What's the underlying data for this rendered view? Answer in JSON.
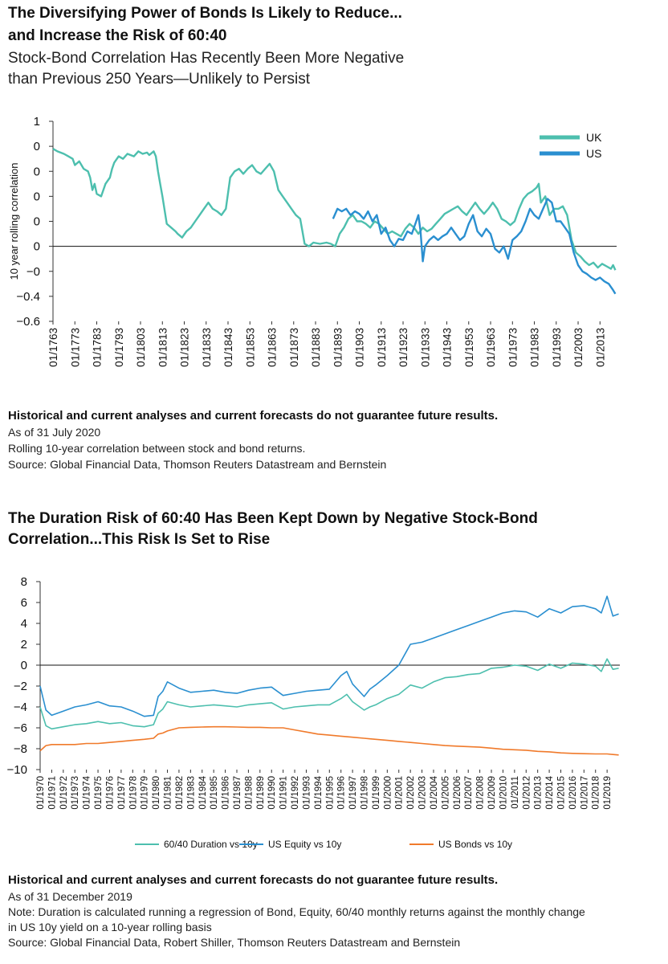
{
  "chart1": {
    "title_line1": "The Diversifying Power of Bonds Is Likely to Reduce...",
    "title_line2": "and Increase the Risk of 60:40",
    "subtitle_line1": "Stock-Bond Correlation Has Recently Been More Negative",
    "subtitle_line2": "than Previous 250 Years—Unlikely to Persist",
    "notes": {
      "disclaimer": "Historical and current analyses and current forecasts do not guarantee future results.",
      "as_of": "As of 31 July 2020",
      "description": "Rolling 10-year correlation between stock and bond returns.",
      "source": "Source: Global Financial Data, Thomson Reuters Datastream and Bernstein"
    }
  },
  "chart2": {
    "title_line1": "The Duration Risk of 60:40 Has Been Kept Down by Negative Stock-Bond",
    "title_line2": "Correlation...This Risk Is Set to Rise",
    "notes": {
      "disclaimer": "Historical and current analyses and current forecasts do not guarantee future results.",
      "as_of": "As of 31 December 2019",
      "note_line1": "Note: Duration is calculated running a regression of Bond, Equity, 60/40 monthly returns against the monthly change",
      "note_line2": "in US 10y yield on a 10-year rolling basis",
      "source": "Source: Global Financial Data, Robert Shiller, Thomson Reuters Datastream and Bernstein"
    }
  },
  "chart_data": [
    {
      "type": "line",
      "ylabel": "10 year rolling correlation",
      "xlabel": "",
      "ylim": [
        -0.6,
        1
      ],
      "xlim": [
        1763,
        2020.6
      ],
      "ytick_labels": [
        "1",
        "0",
        "0",
        "0",
        "0",
        "0",
        "−0",
        "−0.4",
        "−0.6"
      ],
      "ytick_values": [
        1,
        0.8,
        0.6,
        0.4,
        0.2,
        0,
        -0.2,
        -0.4,
        -0.6
      ],
      "xtick_labels": [
        "01/1763",
        "01/1773",
        "01/1783",
        "01/1793",
        "01/1803",
        "01/1813",
        "01/1823",
        "01/1833",
        "01/1843",
        "01/1853",
        "01/1863",
        "01/1873",
        "01/1883",
        "01/1893",
        "01/1903",
        "01/1913",
        "01/1923",
        "01/1933",
        "01/1943",
        "01/1953",
        "01/1963",
        "01/1973",
        "01/1983",
        "01/1993",
        "01/2003",
        "01/2013"
      ],
      "xtick_values": [
        1763,
        1773,
        1783,
        1793,
        1803,
        1813,
        1823,
        1833,
        1843,
        1853,
        1863,
        1873,
        1883,
        1893,
        1903,
        1913,
        1923,
        1933,
        1943,
        1953,
        1963,
        1973,
        1983,
        1993,
        2003,
        2013
      ],
      "legend_position": "top-right",
      "grid": false,
      "series": [
        {
          "name": "UK",
          "color": "#4dbfae",
          "x": [
            1763,
            1765,
            1768,
            1770,
            1772,
            1773,
            1775,
            1777,
            1779,
            1780,
            1781,
            1782,
            1783,
            1785,
            1787,
            1789,
            1790,
            1791,
            1793,
            1795,
            1797,
            1800,
            1802,
            1804,
            1806,
            1807,
            1809,
            1810,
            1811,
            1812,
            1813,
            1815,
            1817,
            1819,
            1820,
            1822,
            1824,
            1826,
            1828,
            1830,
            1832,
            1834,
            1836,
            1838,
            1840,
            1842,
            1844,
            1846,
            1848,
            1850,
            1852,
            1854,
            1856,
            1858,
            1860,
            1862,
            1864,
            1866,
            1868,
            1870,
            1872,
            1874,
            1876,
            1877,
            1878,
            1880,
            1882,
            1885,
            1888,
            1890,
            1892,
            1894,
            1896,
            1898,
            1900,
            1902,
            1904,
            1906,
            1908,
            1910,
            1912,
            1914,
            1916,
            1918,
            1920,
            1922,
            1924,
            1926,
            1928,
            1930,
            1932,
            1934,
            1936,
            1938,
            1940,
            1942,
            1944,
            1946,
            1948,
            1950,
            1952,
            1954,
            1956,
            1958,
            1960,
            1962,
            1964,
            1966,
            1968,
            1970,
            1972,
            1974,
            1976,
            1978,
            1980,
            1982,
            1984,
            1985,
            1986,
            1988,
            1990,
            1992,
            1994,
            1996,
            1998,
            2000,
            2002,
            2004,
            2006,
            2008,
            2010,
            2012,
            2014,
            2016,
            2018,
            2019,
            2020
          ],
          "values": [
            0.78,
            0.76,
            0.74,
            0.72,
            0.7,
            0.65,
            0.68,
            0.62,
            0.6,
            0.55,
            0.45,
            0.5,
            0.42,
            0.4,
            0.5,
            0.55,
            0.62,
            0.67,
            0.72,
            0.7,
            0.74,
            0.72,
            0.76,
            0.74,
            0.75,
            0.73,
            0.76,
            0.72,
            0.6,
            0.5,
            0.4,
            0.18,
            0.15,
            0.12,
            0.1,
            0.07,
            0.12,
            0.15,
            0.2,
            0.25,
            0.3,
            0.35,
            0.3,
            0.28,
            0.25,
            0.3,
            0.55,
            0.6,
            0.62,
            0.58,
            0.62,
            0.65,
            0.6,
            0.58,
            0.62,
            0.66,
            0.6,
            0.45,
            0.4,
            0.35,
            0.3,
            0.25,
            0.22,
            0.12,
            0.02,
            0.0,
            0.03,
            0.02,
            0.03,
            0.02,
            0.0,
            0.1,
            0.15,
            0.22,
            0.25,
            0.2,
            0.2,
            0.18,
            0.15,
            0.2,
            0.18,
            0.14,
            0.1,
            0.12,
            0.1,
            0.08,
            0.14,
            0.18,
            0.15,
            0.1,
            0.15,
            0.12,
            0.14,
            0.18,
            0.22,
            0.26,
            0.28,
            0.3,
            0.32,
            0.28,
            0.25,
            0.3,
            0.35,
            0.3,
            0.26,
            0.3,
            0.35,
            0.3,
            0.22,
            0.2,
            0.17,
            0.2,
            0.3,
            0.38,
            0.42,
            0.44,
            0.47,
            0.5,
            0.35,
            0.4,
            0.25,
            0.3,
            0.3,
            0.32,
            0.25,
            0.05,
            -0.05,
            -0.08,
            -0.12,
            -0.15,
            -0.13,
            -0.17,
            -0.14,
            -0.16,
            -0.18,
            -0.15,
            -0.19
          ]
        },
        {
          "name": "US",
          "color": "#2a8fd0",
          "x": [
            1891,
            1893,
            1895,
            1897,
            1899,
            1901,
            1903,
            1905,
            1907,
            1909,
            1911,
            1913,
            1915,
            1917,
            1919,
            1921,
            1923,
            1925,
            1927,
            1929,
            1930,
            1931,
            1932,
            1933,
            1935,
            1937,
            1939,
            1941,
            1943,
            1945,
            1947,
            1949,
            1951,
            1953,
            1955,
            1957,
            1959,
            1961,
            1963,
            1965,
            1967,
            1969,
            1971,
            1973,
            1975,
            1977,
            1979,
            1981,
            1983,
            1985,
            1987,
            1989,
            1991,
            1993,
            1995,
            1997,
            1999,
            2001,
            2003,
            2005,
            2007,
            2009,
            2011,
            2013,
            2015,
            2017,
            2019,
            2020
          ],
          "values": [
            0.22,
            0.3,
            0.28,
            0.3,
            0.25,
            0.28,
            0.26,
            0.22,
            0.28,
            0.2,
            0.25,
            0.1,
            0.15,
            0.05,
            0.0,
            0.06,
            0.05,
            0.12,
            0.1,
            0.2,
            0.25,
            0.12,
            -0.12,
            0.0,
            0.05,
            0.08,
            0.05,
            0.08,
            0.1,
            0.15,
            0.1,
            0.05,
            0.08,
            0.18,
            0.25,
            0.12,
            0.08,
            0.14,
            0.1,
            -0.02,
            -0.05,
            0.0,
            -0.1,
            0.05,
            0.08,
            0.12,
            0.2,
            0.3,
            0.25,
            0.22,
            0.3,
            0.38,
            0.35,
            0.2,
            0.2,
            0.15,
            0.1,
            -0.05,
            -0.15,
            -0.2,
            -0.22,
            -0.25,
            -0.27,
            -0.25,
            -0.28,
            -0.3,
            -0.35,
            -0.38
          ]
        }
      ]
    },
    {
      "type": "line",
      "ylabel": "",
      "xlabel": "",
      "ylim": [
        -10,
        8
      ],
      "xlim": [
        1970,
        2020.1
      ],
      "ytick_labels": [
        "8",
        "6",
        "4",
        "2",
        "0",
        "−2",
        "−4",
        "−6",
        "−8",
        "−10"
      ],
      "ytick_values": [
        8,
        6,
        4,
        2,
        0,
        -2,
        -4,
        -6,
        -8,
        -10
      ],
      "xtick_labels": [
        "01/1970",
        "01/1971",
        "01/1972",
        "01/1973",
        "01/1974",
        "01/1975",
        "01/1976",
        "01/1977",
        "01/1978",
        "01/1979",
        "01/1980",
        "01/1981",
        "01/1982",
        "01/1983",
        "01/1984",
        "01/1985",
        "01/1986",
        "01/1987",
        "01/1988",
        "01/1989",
        "01/1990",
        "01/1991",
        "01/1992",
        "01/1993",
        "01/1994",
        "01/1995",
        "01/1996",
        "01/1997",
        "01/1998",
        "01/1999",
        "01/2000",
        "01/2001",
        "01/2002",
        "01/2003",
        "01/2004",
        "01/2005",
        "01/2006",
        "01/2007",
        "01/2008",
        "01/2009",
        "01/2010",
        "01/2011",
        "01/2012",
        "01/2013",
        "01/2014",
        "01/2015",
        "01/2016",
        "01/2017",
        "01/2018",
        "01/2019"
      ],
      "xtick_values": [
        1970,
        1971,
        1972,
        1973,
        1974,
        1975,
        1976,
        1977,
        1978,
        1979,
        1980,
        1981,
        1982,
        1983,
        1984,
        1985,
        1986,
        1987,
        1988,
        1989,
        1990,
        1991,
        1992,
        1993,
        1994,
        1995,
        1996,
        1997,
        1998,
        1999,
        2000,
        2001,
        2002,
        2003,
        2004,
        2005,
        2006,
        2007,
        2008,
        2009,
        2010,
        2011,
        2012,
        2013,
        2014,
        2015,
        2016,
        2017,
        2018,
        2019
      ],
      "legend_position": "bottom",
      "grid": false,
      "series": [
        {
          "name": "60/40 Duration vs 10y",
          "color": "#4dbfae",
          "x": [
            1970,
            1970.5,
            1971,
            1972,
            1973,
            1974,
            1975,
            1976,
            1977,
            1978,
            1979,
            1979.8,
            1980.2,
            1980.6,
            1981,
            1982,
            1983,
            1984,
            1985,
            1986,
            1987,
            1988,
            1989,
            1990,
            1991,
            1992,
            1993,
            1994,
            1995,
            1996,
            1996.5,
            1997,
            1998,
            1998.5,
            1999,
            2000,
            2001,
            2002,
            2003,
            2004,
            2005,
            2006,
            2007,
            2008,
            2009,
            2010,
            2011,
            2012,
            2013,
            2014,
            2015,
            2016,
            2017,
            2018,
            2018.5,
            2019,
            2019.5,
            2020
          ],
          "values": [
            -4.0,
            -5.8,
            -6.1,
            -5.9,
            -5.7,
            -5.6,
            -5.4,
            -5.6,
            -5.5,
            -5.8,
            -5.9,
            -5.7,
            -4.6,
            -4.2,
            -3.5,
            -3.8,
            -4.0,
            -3.9,
            -3.8,
            -3.9,
            -4.0,
            -3.8,
            -3.7,
            -3.6,
            -4.2,
            -4.0,
            -3.9,
            -3.8,
            -3.8,
            -3.2,
            -2.8,
            -3.5,
            -4.3,
            -4.0,
            -3.8,
            -3.2,
            -2.8,
            -1.9,
            -2.2,
            -1.6,
            -1.2,
            -1.1,
            -0.9,
            -0.8,
            -0.3,
            -0.2,
            0.0,
            -0.1,
            -0.5,
            0.1,
            -0.3,
            0.2,
            0.1,
            -0.1,
            -0.6,
            0.6,
            -0.4,
            -0.3
          ]
        },
        {
          "name": "US Equity vs 10y",
          "color": "#2a8fd0",
          "x": [
            1970,
            1970.5,
            1971,
            1972,
            1973,
            1974,
            1975,
            1976,
            1977,
            1978,
            1979,
            1979.8,
            1980.2,
            1980.6,
            1981,
            1982,
            1983,
            1984,
            1985,
            1986,
            1987,
            1988,
            1989,
            1990,
            1991,
            1992,
            1993,
            1994,
            1995,
            1996,
            1996.5,
            1997,
            1998,
            1998.5,
            1999,
            2000,
            2001,
            2002,
            2003,
            2004,
            2005,
            2006,
            2007,
            2008,
            2009,
            2010,
            2011,
            2012,
            2013,
            2014,
            2015,
            2016,
            2017,
            2018,
            2018.5,
            2019,
            2019.5,
            2020
          ],
          "values": [
            -2.0,
            -4.3,
            -4.8,
            -4.4,
            -4.0,
            -3.8,
            -3.5,
            -3.9,
            -4.0,
            -4.4,
            -4.9,
            -4.8,
            -3.0,
            -2.5,
            -1.6,
            -2.2,
            -2.6,
            -2.5,
            -2.4,
            -2.6,
            -2.7,
            -2.4,
            -2.2,
            -2.1,
            -2.9,
            -2.7,
            -2.5,
            -2.4,
            -2.3,
            -1.0,
            -0.6,
            -1.8,
            -3.0,
            -2.3,
            -1.9,
            -1.0,
            0.0,
            2.0,
            2.2,
            2.6,
            3.0,
            3.4,
            3.8,
            4.2,
            4.6,
            5.0,
            5.2,
            5.1,
            4.6,
            5.4,
            5.0,
            5.6,
            5.7,
            5.4,
            5.0,
            6.6,
            4.7,
            4.9
          ]
        },
        {
          "name": "US Bonds vs 10y",
          "color": "#f07a2b",
          "x": [
            1970,
            1970.5,
            1971,
            1972,
            1973,
            1974,
            1975,
            1976,
            1977,
            1978,
            1979,
            1979.8,
            1980.2,
            1980.6,
            1981,
            1982,
            1983,
            1984,
            1985,
            1986,
            1987,
            1988,
            1989,
            1990,
            1991,
            1992,
            1993,
            1994,
            1995,
            1996,
            1996.5,
            1997,
            1998,
            1998.5,
            1999,
            2000,
            2001,
            2002,
            2003,
            2004,
            2005,
            2006,
            2007,
            2008,
            2009,
            2010,
            2011,
            2012,
            2013,
            2014,
            2015,
            2016,
            2017,
            2018,
            2018.5,
            2019,
            2019.5,
            2020
          ],
          "values": [
            -8.2,
            -7.7,
            -7.6,
            -7.6,
            -7.6,
            -7.5,
            -7.5,
            -7.4,
            -7.3,
            -7.2,
            -7.1,
            -7.0,
            -6.6,
            -6.5,
            -6.3,
            -6.0,
            -5.95,
            -5.92,
            -5.9,
            -5.9,
            -5.92,
            -5.95,
            -5.95,
            -6.0,
            -6.0,
            -6.2,
            -6.4,
            -6.6,
            -6.7,
            -6.8,
            -6.85,
            -6.9,
            -7.0,
            -7.05,
            -7.1,
            -7.2,
            -7.3,
            -7.4,
            -7.5,
            -7.6,
            -7.7,
            -7.75,
            -7.8,
            -7.85,
            -7.95,
            -8.05,
            -8.1,
            -8.15,
            -8.25,
            -8.3,
            -8.4,
            -8.45,
            -8.48,
            -8.5,
            -8.5,
            -8.5,
            -8.55,
            -8.6
          ]
        }
      ]
    }
  ]
}
